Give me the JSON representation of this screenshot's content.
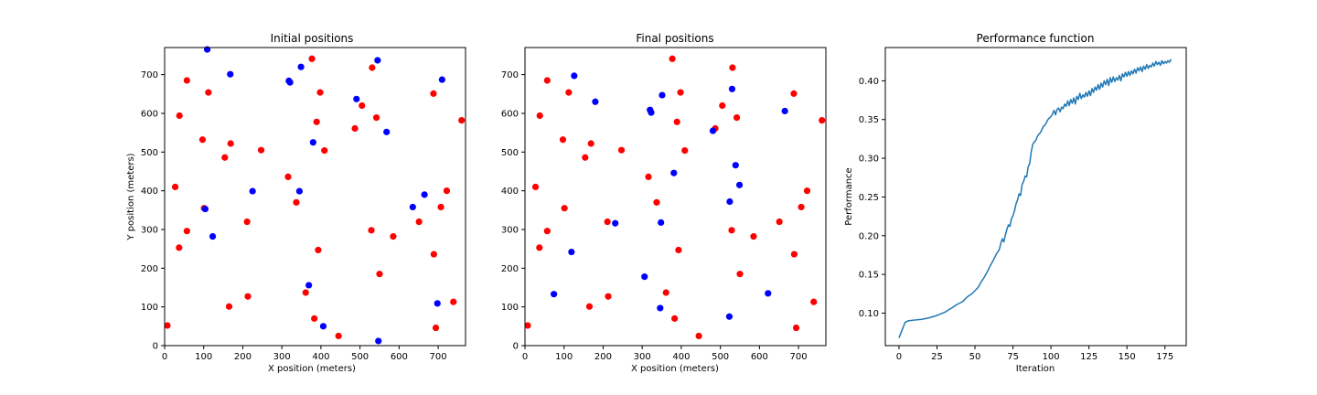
{
  "chart_data": [
    {
      "type": "scatter",
      "title": "Initial positions",
      "xlabel": "X position (meters)",
      "ylabel": "Y position (meters)",
      "xlim": [
        0,
        770
      ],
      "ylim": [
        0,
        770
      ],
      "xticks": [
        0,
        100,
        200,
        300,
        400,
        500,
        600,
        700
      ],
      "yticks": [
        0,
        100,
        200,
        300,
        400,
        500,
        600,
        700
      ],
      "grid": false,
      "colors": {
        "red": "#ff0000",
        "blue": "#0000ff"
      },
      "series": [
        {
          "color": "#ff0000",
          "points": [
            [
              7,
              52
            ],
            [
              27,
              410
            ],
            [
              37,
              253
            ],
            [
              38,
              594
            ],
            [
              57,
              685
            ],
            [
              57,
              296
            ],
            [
              97,
              532
            ],
            [
              101,
              355
            ],
            [
              112,
              654
            ],
            [
              154,
              486
            ],
            [
              165,
              101
            ],
            [
              169,
              522
            ],
            [
              211,
              320
            ],
            [
              213,
              127
            ],
            [
              247,
              505
            ],
            [
              316,
              436
            ],
            [
              337,
              370
            ],
            [
              361,
              137
            ],
            [
              377,
              741
            ],
            [
              383,
              70
            ],
            [
              389,
              578
            ],
            [
              393,
              247
            ],
            [
              398,
              654
            ],
            [
              409,
              504
            ],
            [
              445,
              25
            ],
            [
              487,
              561
            ],
            [
              505,
              620
            ],
            [
              529,
              298
            ],
            [
              531,
              718
            ],
            [
              542,
              589
            ],
            [
              550,
              185
            ],
            [
              585,
              282
            ],
            [
              651,
              320
            ],
            [
              688,
              651
            ],
            [
              689,
              236
            ],
            [
              694,
              46
            ],
            [
              707,
              358
            ],
            [
              722,
              400
            ],
            [
              739,
              113
            ],
            [
              760,
              582
            ]
          ]
        },
        {
          "color": "#0000ff",
          "points": [
            [
              104,
              353
            ],
            [
              109,
              765
            ],
            [
              123,
              282
            ],
            [
              168,
              701
            ],
            [
              225,
              399
            ],
            [
              318,
              684
            ],
            [
              321,
              680
            ],
            [
              345,
              399
            ],
            [
              349,
              720
            ],
            [
              369,
              156
            ],
            [
              380,
              525
            ],
            [
              406,
              50
            ],
            [
              491,
              637
            ],
            [
              545,
              737
            ],
            [
              547,
              12
            ],
            [
              568,
              552
            ],
            [
              635,
              358
            ],
            [
              665,
              390
            ],
            [
              698,
              109
            ],
            [
              710,
              687
            ]
          ]
        }
      ]
    },
    {
      "type": "scatter",
      "title": "Final positions",
      "xlabel": "X position (meters)",
      "ylabel": "",
      "xlim": [
        0,
        770
      ],
      "ylim": [
        0,
        770
      ],
      "xticks": [
        0,
        100,
        200,
        300,
        400,
        500,
        600,
        700
      ],
      "yticks": [
        0,
        100,
        200,
        300,
        400,
        500,
        600,
        700
      ],
      "grid": false,
      "colors": {
        "red": "#ff0000",
        "blue": "#0000ff"
      },
      "series": [
        {
          "color": "#ff0000",
          "points": [
            [
              7,
              52
            ],
            [
              27,
              410
            ],
            [
              37,
              253
            ],
            [
              38,
              594
            ],
            [
              57,
              685
            ],
            [
              57,
              296
            ],
            [
              97,
              532
            ],
            [
              101,
              355
            ],
            [
              112,
              654
            ],
            [
              154,
              486
            ],
            [
              165,
              101
            ],
            [
              169,
              522
            ],
            [
              211,
              320
            ],
            [
              213,
              127
            ],
            [
              247,
              505
            ],
            [
              316,
              436
            ],
            [
              337,
              370
            ],
            [
              361,
              137
            ],
            [
              377,
              741
            ],
            [
              383,
              70
            ],
            [
              389,
              578
            ],
            [
              393,
              247
            ],
            [
              398,
              654
            ],
            [
              409,
              504
            ],
            [
              445,
              25
            ],
            [
              487,
              561
            ],
            [
              505,
              620
            ],
            [
              529,
              298
            ],
            [
              531,
              718
            ],
            [
              542,
              589
            ],
            [
              550,
              185
            ],
            [
              585,
              282
            ],
            [
              651,
              320
            ],
            [
              688,
              651
            ],
            [
              689,
              236
            ],
            [
              694,
              46
            ],
            [
              707,
              358
            ],
            [
              722,
              400
            ],
            [
              739,
              113
            ],
            [
              760,
              582
            ]
          ]
        },
        {
          "color": "#0000ff",
          "points": [
            [
              74,
              133
            ],
            [
              119,
              242
            ],
            [
              126,
              697
            ],
            [
              180,
              630
            ],
            [
              231,
              316
            ],
            [
              306,
              178
            ],
            [
              320,
              609
            ],
            [
              323,
              602
            ],
            [
              346,
              97
            ],
            [
              348,
              318
            ],
            [
              351,
              647
            ],
            [
              381,
              446
            ],
            [
              481,
              555
            ],
            [
              523,
              75
            ],
            [
              524,
              372
            ],
            [
              530,
              663
            ],
            [
              539,
              466
            ],
            [
              549,
              415
            ],
            [
              622,
              135
            ],
            [
              665,
              606
            ]
          ]
        }
      ]
    },
    {
      "type": "line",
      "title": "Performance function",
      "xlabel": "Iteration",
      "ylabel": "Performance",
      "xlim": [
        -9,
        189
      ],
      "ylim": [
        0.058,
        0.443
      ],
      "xticks": [
        0,
        25,
        50,
        75,
        100,
        125,
        150,
        175
      ],
      "yticks": [
        0.1,
        0.15,
        0.2,
        0.25,
        0.3,
        0.35,
        0.4
      ],
      "ytick_labels": [
        "0.10",
        "0.15",
        "0.20",
        "0.25",
        "0.30",
        "0.35",
        "0.40"
      ],
      "grid": false,
      "colors": {
        "line": "#1f77b4"
      },
      "series": [
        {
          "color": "#1f77b4",
          "points": [
            [
              0,
              0.068
            ],
            [
              2,
              0.078
            ],
            [
              4,
              0.088
            ],
            [
              6,
              0.09
            ],
            [
              10,
              0.091
            ],
            [
              15,
              0.092
            ],
            [
              20,
              0.094
            ],
            [
              25,
              0.097
            ],
            [
              30,
              0.101
            ],
            [
              35,
              0.107
            ],
            [
              38,
              0.111
            ],
            [
              42,
              0.115
            ],
            [
              45,
              0.121
            ],
            [
              48,
              0.125
            ],
            [
              50,
              0.129
            ],
            [
              52,
              0.133
            ],
            [
              54,
              0.14
            ],
            [
              56,
              0.146
            ],
            [
              58,
              0.153
            ],
            [
              60,
              0.161
            ],
            [
              62,
              0.168
            ],
            [
              64,
              0.176
            ],
            [
              66,
              0.182
            ],
            [
              67,
              0.19
            ],
            [
              68,
              0.196
            ],
            [
              69,
              0.192
            ],
            [
              70,
              0.201
            ],
            [
              71,
              0.208
            ],
            [
              72,
              0.214
            ],
            [
              73,
              0.212
            ],
            [
              74,
              0.222
            ],
            [
              75,
              0.226
            ],
            [
              76,
              0.232
            ],
            [
              77,
              0.241
            ],
            [
              78,
              0.246
            ],
            [
              79,
              0.254
            ],
            [
              80,
              0.252
            ],
            [
              81,
              0.266
            ],
            [
              82,
              0.27
            ],
            [
              83,
              0.277
            ],
            [
              84,
              0.276
            ],
            [
              85,
              0.289
            ],
            [
              86,
              0.293
            ],
            [
              87,
              0.308
            ],
            [
              88,
              0.318
            ],
            [
              89,
              0.321
            ],
            [
              90,
              0.323
            ],
            [
              91,
              0.328
            ],
            [
              92,
              0.331
            ],
            [
              93,
              0.333
            ],
            [
              94,
              0.337
            ],
            [
              95,
              0.341
            ],
            [
              96,
              0.343
            ],
            [
              97,
              0.346
            ],
            [
              98,
              0.35
            ],
            [
              99,
              0.352
            ],
            [
              100,
              0.354
            ],
            [
              101,
              0.357
            ],
            [
              102,
              0.362
            ],
            [
              103,
              0.356
            ],
            [
              104,
              0.363
            ],
            [
              105,
              0.365
            ],
            [
              106,
              0.36
            ],
            [
              107,
              0.366
            ],
            [
              108,
              0.364
            ],
            [
              109,
              0.37
            ],
            [
              110,
              0.367
            ],
            [
              111,
              0.374
            ],
            [
              112,
              0.368
            ],
            [
              113,
              0.376
            ],
            [
              114,
              0.371
            ],
            [
              115,
              0.378
            ],
            [
              116,
              0.37
            ],
            [
              117,
              0.38
            ],
            [
              118,
              0.376
            ],
            [
              119,
              0.384
            ],
            [
              120,
              0.377
            ],
            [
              121,
              0.382
            ],
            [
              122,
              0.379
            ],
            [
              123,
              0.385
            ],
            [
              124,
              0.38
            ],
            [
              125,
              0.387
            ],
            [
              126,
              0.381
            ],
            [
              127,
              0.39
            ],
            [
              128,
              0.385
            ],
            [
              129,
              0.392
            ],
            [
              130,
              0.388
            ],
            [
              131,
              0.395
            ],
            [
              132,
              0.389
            ],
            [
              133,
              0.397
            ],
            [
              134,
              0.392
            ],
            [
              135,
              0.4
            ],
            [
              136,
              0.395
            ],
            [
              137,
              0.402
            ],
            [
              138,
              0.394
            ],
            [
              139,
              0.404
            ],
            [
              140,
              0.398
            ],
            [
              141,
              0.405
            ],
            [
              142,
              0.399
            ],
            [
              143,
              0.404
            ],
            [
              144,
              0.401
            ],
            [
              145,
              0.407
            ],
            [
              146,
              0.4
            ],
            [
              147,
              0.409
            ],
            [
              148,
              0.405
            ],
            [
              149,
              0.411
            ],
            [
              150,
              0.406
            ],
            [
              151,
              0.412
            ],
            [
              152,
              0.407
            ],
            [
              153,
              0.413
            ],
            [
              154,
              0.409
            ],
            [
              155,
              0.415
            ],
            [
              156,
              0.41
            ],
            [
              157,
              0.417
            ],
            [
              158,
              0.413
            ],
            [
              159,
              0.418
            ],
            [
              160,
              0.412
            ],
            [
              161,
              0.419
            ],
            [
              162,
              0.415
            ],
            [
              163,
              0.421
            ],
            [
              164,
              0.416
            ],
            [
              165,
              0.42
            ],
            [
              166,
              0.418
            ],
            [
              167,
              0.423
            ],
            [
              168,
              0.419
            ],
            [
              169,
              0.425
            ],
            [
              170,
              0.421
            ],
            [
              171,
              0.424
            ],
            [
              172,
              0.42
            ],
            [
              173,
              0.426
            ],
            [
              174,
              0.422
            ],
            [
              175,
              0.425
            ],
            [
              176,
              0.423
            ],
            [
              177,
              0.426
            ],
            [
              178,
              0.424
            ],
            [
              179,
              0.428
            ]
          ]
        }
      ]
    }
  ]
}
